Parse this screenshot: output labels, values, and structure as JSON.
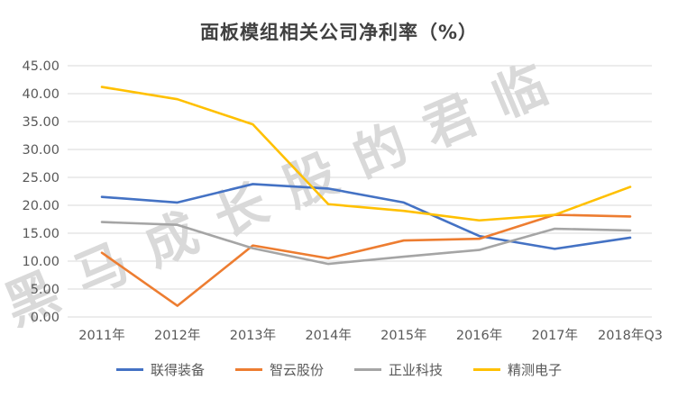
{
  "watermark": "黑马成长股的君临",
  "chart_data": {
    "type": "line",
    "title": "面板模组相关公司净利率（%）",
    "categories": [
      "2011年",
      "2012年",
      "2013年",
      "2014年",
      "2015年",
      "2016年",
      "2017年",
      "2018年Q3"
    ],
    "series": [
      {
        "name": "联得装备",
        "color": "#4472C4",
        "values": [
          21.5,
          20.5,
          23.8,
          23.0,
          20.5,
          14.5,
          12.2,
          14.2
        ]
      },
      {
        "name": "智云股份",
        "color": "#ED7D31",
        "values": [
          11.5,
          2.0,
          12.8,
          10.5,
          13.7,
          14.0,
          18.3,
          18.0
        ]
      },
      {
        "name": "正业科技",
        "color": "#A5A5A5",
        "values": [
          17.0,
          16.5,
          12.3,
          9.5,
          10.8,
          12.0,
          15.8,
          15.5
        ]
      },
      {
        "name": "精测电子",
        "color": "#FFC000",
        "values": [
          41.2,
          39.0,
          34.5,
          20.2,
          19.0,
          17.3,
          18.3,
          23.3
        ]
      }
    ],
    "xlabel": "",
    "ylabel": "",
    "ylim": [
      0,
      45
    ],
    "yticks": [
      0,
      5,
      10,
      15,
      20,
      25,
      30,
      35,
      40,
      45
    ],
    "ytick_decimals": 2,
    "grid": true,
    "legend_position": "bottom",
    "gridline_color": "#D9D9D9",
    "tick_label_color": "#595959",
    "title_color": "#404040"
  }
}
